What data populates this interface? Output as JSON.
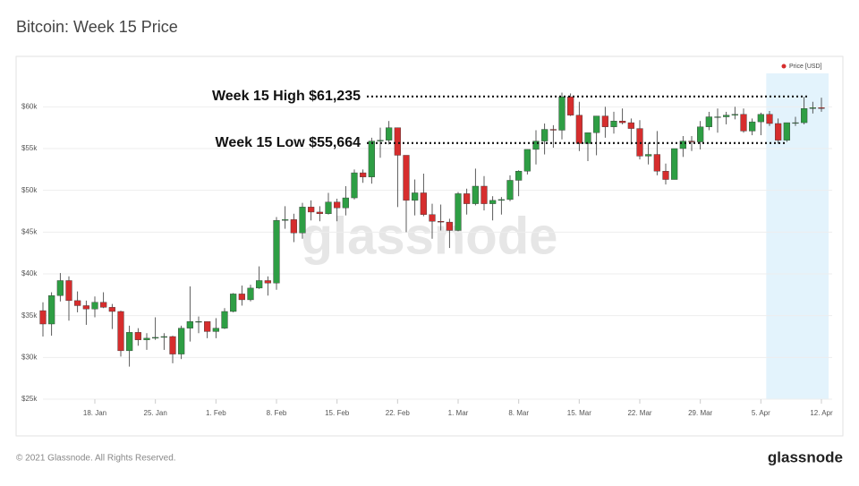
{
  "chart_data": {
    "type": "candlestick",
    "title": "Bitcoin: Week 15 Price",
    "watermark": "glassnode",
    "grid": true,
    "legend": "top-right",
    "categories": [
      null,
      null,
      null,
      null,
      null,
      null,
      "18. Jan",
      null,
      null,
      null,
      null,
      null,
      null,
      "25. Jan",
      null,
      null,
      null,
      null,
      null,
      null,
      "1. Feb",
      null,
      null,
      null,
      null,
      null,
      null,
      "8. Feb",
      null,
      null,
      null,
      null,
      null,
      null,
      "15. Feb",
      null,
      null,
      null,
      null,
      null,
      null,
      "22. Feb",
      null,
      null,
      null,
      null,
      null,
      null,
      "1. Mar",
      null,
      null,
      null,
      null,
      null,
      null,
      "8. Mar",
      null,
      null,
      null,
      null,
      null,
      null,
      "15. Mar",
      null,
      null,
      null,
      null,
      null,
      null,
      "22. Mar",
      null,
      null,
      null,
      null,
      null,
      null,
      "29. Mar",
      null,
      null,
      null,
      null,
      null,
      null,
      "5. Apr",
      null,
      null,
      null,
      null,
      null,
      null,
      "12. Apr"
    ],
    "highlight_range": [
      "5. Apr",
      "12. Apr"
    ],
    "ylim": [
      25000,
      64000
    ],
    "yticks": [
      {
        "value": 25000,
        "label": "$25k"
      },
      {
        "value": 30000,
        "label": "$30k"
      },
      {
        "value": 35000,
        "label": "$35k"
      },
      {
        "value": 40000,
        "label": "$40k"
      },
      {
        "value": 45000,
        "label": "$45k"
      },
      {
        "value": 50000,
        "label": "$50k"
      },
      {
        "value": 55000,
        "label": "$55k"
      },
      {
        "value": 60000,
        "label": "$60k"
      }
    ],
    "annotations": [
      {
        "value": 61235,
        "label": "Week 15 High $61,235"
      },
      {
        "value": 55664,
        "label": "Week 15 Low $55,664"
      }
    ],
    "series": [
      {
        "name": "Price [USD]",
        "color": "#d62d2d",
        "up_color": "#2e9e44",
        "down_color": "#d62d2d",
        "open": [
          35600,
          34000,
          37400,
          39200,
          36800,
          36200,
          35800,
          36600,
          36000,
          35500,
          30800,
          33000,
          32100,
          32300,
          32400,
          32500,
          30400,
          33500,
          34300,
          34300,
          33100,
          33500,
          35500,
          37600,
          36900,
          38300,
          39200,
          38900,
          46400,
          46500,
          44900,
          48000,
          47400,
          47200,
          48600,
          47900,
          49100,
          52100,
          51600,
          55900,
          56000,
          57500,
          54200,
          48800,
          49700,
          47100,
          46300,
          46200,
          45200,
          49600,
          48400,
          50500,
          48400,
          48800,
          48900,
          51200,
          52300,
          54900,
          55900,
          57300,
          57200,
          61200,
          59000,
          55600,
          56900,
          58900,
          57600,
          58300,
          58100,
          57400,
          54100,
          54300,
          52300,
          51300,
          55000,
          55900,
          55800,
          57600,
          58800,
          58800,
          59000,
          59100,
          57100,
          58200,
          59100,
          58000,
          56000,
          58100,
          58100,
          59800,
          59900
        ],
        "high": [
          36600,
          37800,
          40100,
          39700,
          37900,
          36800,
          37300,
          37800,
          36400,
          35600,
          33800,
          33500,
          32900,
          34800,
          32900,
          32600,
          33800,
          38500,
          34900,
          34300,
          34700,
          35900,
          37700,
          38600,
          38700,
          40900,
          39700,
          46800,
          48100,
          47200,
          48500,
          48800,
          48100,
          49700,
          49000,
          50500,
          52500,
          52500,
          56300,
          57500,
          58300,
          57500,
          54200,
          51300,
          52000,
          48400,
          48300,
          46600,
          49800,
          50200,
          52600,
          51700,
          49300,
          49200,
          51800,
          52400,
          54900,
          57200,
          58000,
          57800,
          61700,
          61600,
          60600,
          56900,
          58900,
          60000,
          59400,
          59800,
          58600,
          58400,
          55700,
          57100,
          53200,
          55000,
          56500,
          56500,
          58300,
          59400,
          59800,
          59400,
          60000,
          59800,
          58600,
          59300,
          59500,
          58600,
          58100,
          58800,
          61200,
          60600,
          61100
        ],
        "low": [
          32500,
          32600,
          36700,
          34400,
          35400,
          33900,
          34800,
          35900,
          33400,
          30100,
          28900,
          31400,
          30900,
          32100,
          30900,
          29300,
          29800,
          31900,
          32900,
          32300,
          32300,
          33400,
          35400,
          36200,
          36700,
          38200,
          37400,
          38100,
          45400,
          43800,
          44200,
          46400,
          46300,
          47100,
          46300,
          47000,
          48900,
          50900,
          50800,
          53900,
          55500,
          48000,
          45000,
          47000,
          46900,
          44200,
          45200,
          43100,
          45100,
          47100,
          48200,
          47600,
          46400,
          47100,
          48700,
          49300,
          51900,
          53100,
          54300,
          55100,
          56100,
          58900,
          54700,
          53500,
          54200,
          56300,
          56800,
          57900,
          55500,
          53700,
          53100,
          51800,
          50700,
          51300,
          54000,
          54700,
          54900,
          57200,
          56900,
          57900,
          58500,
          56900,
          56600,
          56600,
          57700,
          55600,
          55800,
          57700,
          57900,
          59200,
          59400
        ],
        "close": [
          34000,
          37400,
          39200,
          36800,
          36200,
          35800,
          36600,
          36000,
          35500,
          30800,
          33000,
          32100,
          32300,
          32400,
          32500,
          30400,
          33500,
          34300,
          34300,
          33100,
          33500,
          35500,
          37600,
          36900,
          38300,
          39200,
          38900,
          46400,
          46500,
          44900,
          48000,
          47400,
          47200,
          48600,
          47900,
          49100,
          52100,
          51600,
          55900,
          56000,
          57500,
          54200,
          48800,
          49700,
          47100,
          46300,
          46200,
          45200,
          49600,
          48400,
          50500,
          48400,
          48800,
          48900,
          51200,
          52300,
          54900,
          55900,
          57300,
          57200,
          61200,
          59000,
          55600,
          56900,
          58900,
          57600,
          58300,
          58100,
          57400,
          54100,
          54300,
          52300,
          51300,
          55000,
          55900,
          55800,
          57600,
          58800,
          58800,
          59000,
          59100,
          57100,
          58200,
          59100,
          58000,
          56000,
          58100,
          58100,
          59800,
          59900,
          59800
        ]
      }
    ]
  },
  "footer": {
    "copyright": "© 2021 Glassnode. All Rights Reserved.",
    "logo": "glassnode"
  }
}
